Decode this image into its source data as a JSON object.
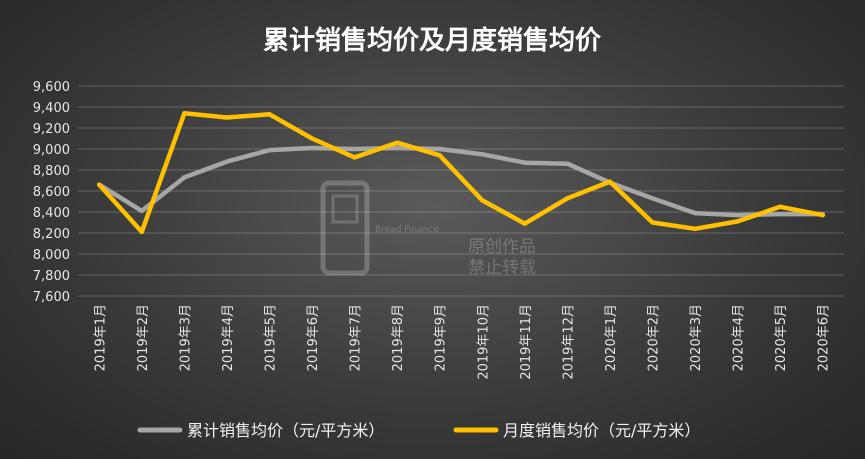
{
  "chart_data": {
    "type": "line",
    "title": "累计销售均价及月度销售均价",
    "xlabel": "",
    "ylabel": "",
    "ylim": [
      7600,
      9600
    ],
    "ystep": 200,
    "yticks": [
      "7,600",
      "7,800",
      "8,000",
      "8,200",
      "8,400",
      "8,600",
      "8,800",
      "9,000",
      "9,200",
      "9,400",
      "9,600"
    ],
    "categories": [
      "2019年1月",
      "2019年2月",
      "2019年3月",
      "2019年4月",
      "2019年5月",
      "2019年6月",
      "2019年7月",
      "2019年8月",
      "2019年9月",
      "2019年10月",
      "2019年11月",
      "2019年12月",
      "2020年1月",
      "2020年2月",
      "2020年3月",
      "2020年4月",
      "2020年5月",
      "2020年6月"
    ],
    "series": [
      {
        "name": "累计销售均价（元/平方米）",
        "color": "#a6a6a6",
        "values": [
          8660,
          8410,
          8730,
          8880,
          8990,
          9010,
          9000,
          9010,
          9000,
          8950,
          8870,
          8860,
          8680,
          8530,
          8390,
          8370,
          8380,
          8380
        ]
      },
      {
        "name": "月度销售均价（元/平方米）",
        "color": "#ffc000",
        "values": [
          8660,
          8210,
          9340,
          9300,
          9330,
          9100,
          8920,
          9060,
          8940,
          8510,
          8290,
          8530,
          8690,
          8300,
          8240,
          8310,
          8450,
          8370
        ]
      }
    ],
    "grid": true,
    "legend": "bottom"
  },
  "watermark": {
    "brand_en": "Bread Finance",
    "line1": "原创作品",
    "line2": "禁止转载"
  }
}
